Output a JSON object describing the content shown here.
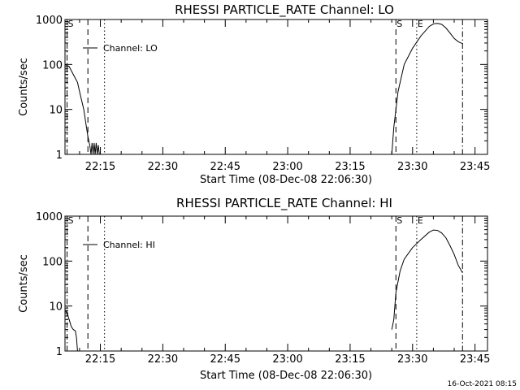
{
  "footer_timestamp": "16-Oct-2021 08:15",
  "chart_data": [
    {
      "type": "line",
      "title": "RHESSI PARTICLE_RATE Channel: LO",
      "xlabel": "Start Time (08-Dec-08 22:06:30)",
      "ylabel": "Counts/sec",
      "yscale": "log",
      "ylim": [
        1,
        1000
      ],
      "xlim": [
        "22:06:30",
        "23:48:00"
      ],
      "x_ticks": [
        "22:15",
        "22:30",
        "22:45",
        "23:00",
        "23:15",
        "23:30",
        "23:45"
      ],
      "y_ticks": [
        "1",
        "10",
        "100",
        "1000"
      ],
      "legend": {
        "label": "Channel: LO",
        "placement": "top-left"
      },
      "markers": [
        {
          "label": "S",
          "style": "dash-dot",
          "time": "22:07"
        },
        {
          "label": "",
          "style": "dashed",
          "time": "22:12"
        },
        {
          "label": "",
          "style": "dotted",
          "time": "22:16"
        },
        {
          "label": "S",
          "style": "dashed",
          "time": "23:26"
        },
        {
          "label": "E",
          "style": "dotted",
          "time": "23:31"
        },
        {
          "label": "",
          "style": "dash-dot",
          "time": "23:42"
        }
      ],
      "series": [
        {
          "segments": [
            {
              "x": [
                "22:06:30",
                "22:07:30",
                "22:08:30",
                "22:09:30",
                "22:10:00",
                "22:11:00",
                "22:11:30",
                "22:12:00",
                "22:12:30",
                "22:12:45",
                "22:13:00",
                "22:13:15",
                "22:13:30",
                "22:13:45",
                "22:14:00",
                "22:14:15",
                "22:14:30",
                "22:14:45",
                "22:15:00"
              ],
              "y": [
                100,
                90,
                60,
                40,
                25,
                10,
                5,
                2.5,
                1.5,
                1,
                1.8,
                1,
                1.8,
                1,
                1.8,
                1,
                1.6,
                1,
                1
              ]
            },
            {
              "x": [
                "23:25:00",
                "23:25:30",
                "23:26:30",
                "23:28:00",
                "23:30:00",
                "23:32:00",
                "23:34:00",
                "23:35:00",
                "23:36:00",
                "23:37:00",
                "23:38:00",
                "23:39:00",
                "23:40:00",
                "23:41:00",
                "23:42:00"
              ],
              "y": [
                1,
                4,
                25,
                100,
                230,
                430,
                700,
                800,
                820,
                780,
                650,
                500,
                380,
                320,
                290
              ]
            }
          ]
        }
      ]
    },
    {
      "type": "line",
      "title": "RHESSI PARTICLE_RATE Channel: HI",
      "xlabel": "Start Time (08-Dec-08 22:06:30)",
      "ylabel": "Counts/sec",
      "yscale": "log",
      "ylim": [
        1,
        1000
      ],
      "xlim": [
        "22:06:30",
        "23:48:00"
      ],
      "x_ticks": [
        "22:15",
        "22:30",
        "22:45",
        "23:00",
        "23:15",
        "23:30",
        "23:45"
      ],
      "y_ticks": [
        "1",
        "10",
        "100",
        "1000"
      ],
      "legend": {
        "label": "Channel: HI",
        "placement": "top-left"
      },
      "markers": [
        {
          "label": "S",
          "style": "dash-dot",
          "time": "22:07"
        },
        {
          "label": "",
          "style": "dashed",
          "time": "22:12"
        },
        {
          "label": "",
          "style": "dotted",
          "time": "22:16"
        },
        {
          "label": "S",
          "style": "dashed",
          "time": "23:26"
        },
        {
          "label": "E",
          "style": "dotted",
          "time": "23:31"
        },
        {
          "label": "",
          "style": "dash-dot",
          "time": "23:42"
        }
      ],
      "series": [
        {
          "segments": [
            {
              "x": [
                "22:06:30",
                "22:07:00",
                "22:07:30",
                "22:08:00",
                "22:08:30",
                "22:09:00",
                "22:09:15",
                "22:09:30"
              ],
              "y": [
                8,
                7,
                5,
                3.5,
                3,
                2.8,
                2,
                1
              ]
            },
            {
              "x": [
                "23:25:00",
                "23:25:30",
                "23:26:00",
                "23:27:00",
                "23:28:00",
                "23:30:00",
                "23:32:00",
                "23:34:00",
                "23:35:00",
                "23:36:00",
                "23:37:00",
                "23:38:00",
                "23:39:00",
                "23:40:00",
                "23:41:00",
                "23:42:00"
              ],
              "y": [
                3,
                5,
                20,
                60,
                110,
                200,
                300,
                440,
                490,
                480,
                420,
                330,
                220,
                140,
                80,
                55
              ]
            }
          ]
        }
      ]
    }
  ]
}
